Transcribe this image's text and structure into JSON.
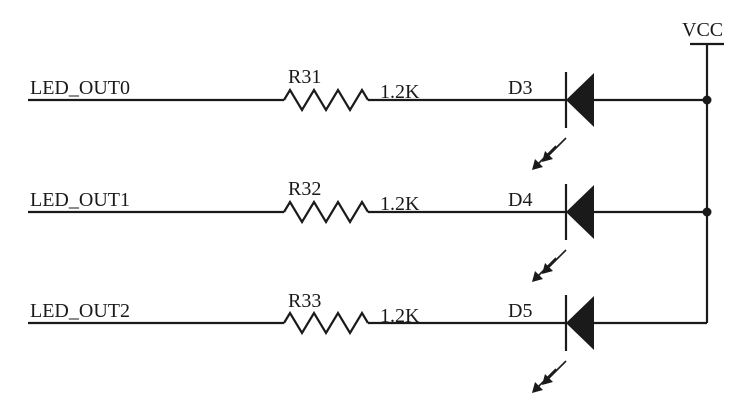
{
  "power": {
    "label": "VCC"
  },
  "rows": [
    {
      "net": "LED_OUT0",
      "resistor": "R31",
      "value": "1.2K",
      "diode": "D3"
    },
    {
      "net": "LED_OUT1",
      "resistor": "R32",
      "value": "1.2K",
      "diode": "D4"
    },
    {
      "net": "LED_OUT2",
      "resistor": "R33",
      "value": "1.2K",
      "diode": "D5"
    }
  ]
}
